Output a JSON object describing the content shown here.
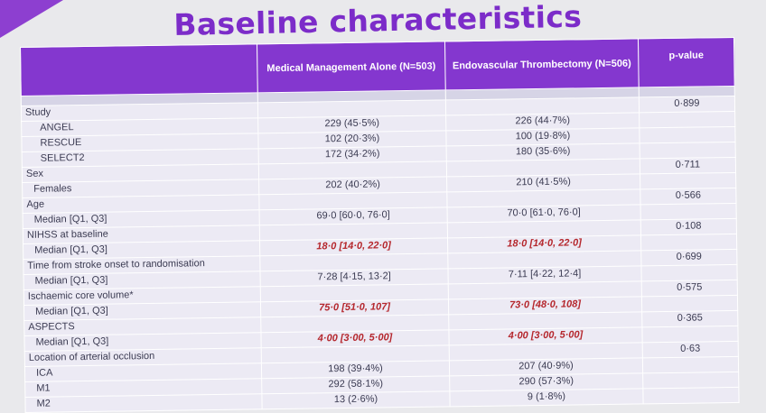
{
  "title": "Baseline characteristics",
  "columns": {
    "col1": "Medical Management Alone (N=503)",
    "col2": "Endovascular Thrombectomy (N=506)",
    "pvalue": "p-value"
  },
  "rows": {
    "study": {
      "label": "Study",
      "p": "0·899"
    },
    "angel": {
      "label": "ANGEL",
      "mm": "229 (45·5%)",
      "evt": "226 (44·7%)"
    },
    "rescue": {
      "label": "RESCUE",
      "mm": "102 (20·3%)",
      "evt": "100 (19·8%)"
    },
    "select2": {
      "label": "SELECT2",
      "mm": "172 (34·2%)",
      "evt": "180 (35·6%)"
    },
    "sex": {
      "label": "Sex",
      "p": "0·711"
    },
    "females": {
      "label": "Females",
      "mm": "202 (40·2%)",
      "evt": "210 (41·5%)"
    },
    "age": {
      "label": "Age",
      "p": "0·566"
    },
    "age_median": {
      "label": "Median [Q1, Q3]",
      "mm": "69·0 [60·0, 76·0]",
      "evt": "70·0 [61·0, 76·0]"
    },
    "nihss": {
      "label": "NIHSS at baseline",
      "p": "0·108"
    },
    "nihss_median": {
      "label": "Median [Q1, Q3]",
      "mm": "18·0 [14·0, 22·0]",
      "evt": "18·0 [14·0, 22·0]"
    },
    "time": {
      "label": "Time from stroke onset to randomisation",
      "p": "0·699"
    },
    "time_median": {
      "label": "Median [Q1, Q3]",
      "mm": "7·28 [4·15, 13·2]",
      "evt": "7·11 [4·22, 12·4]"
    },
    "core": {
      "label": "Ischaemic core volume*",
      "p": "0·575"
    },
    "core_median": {
      "label": "Median [Q1, Q3]",
      "mm": "75·0 [51·0, 107]",
      "evt": "73·0 [48·0, 108]"
    },
    "aspects": {
      "label": "ASPECTS",
      "p": "0·365"
    },
    "aspects_median": {
      "label": "Median [Q1, Q3]",
      "mm": "4·00 [3·00, 5·00]",
      "evt": "4·00 [3·00, 5·00]"
    },
    "location": {
      "label": "Location of arterial occlusion",
      "p": "0·63"
    },
    "ica": {
      "label": "ICA",
      "mm": "198 (39·4%)",
      "evt": "207 (40·9%)"
    },
    "m1": {
      "label": "M1",
      "mm": "292 (58·1%)",
      "evt": "290 (57·3%)"
    },
    "m2": {
      "label": "M2",
      "mm": "13 (2·6%)",
      "evt": "9 (1·8%)"
    }
  },
  "colors": {
    "accent": "#7c2cc9",
    "header_bg": "#8437cf",
    "band": "#d6d4e6",
    "row": "#eceaf4",
    "emphasis": "#b5272d"
  }
}
